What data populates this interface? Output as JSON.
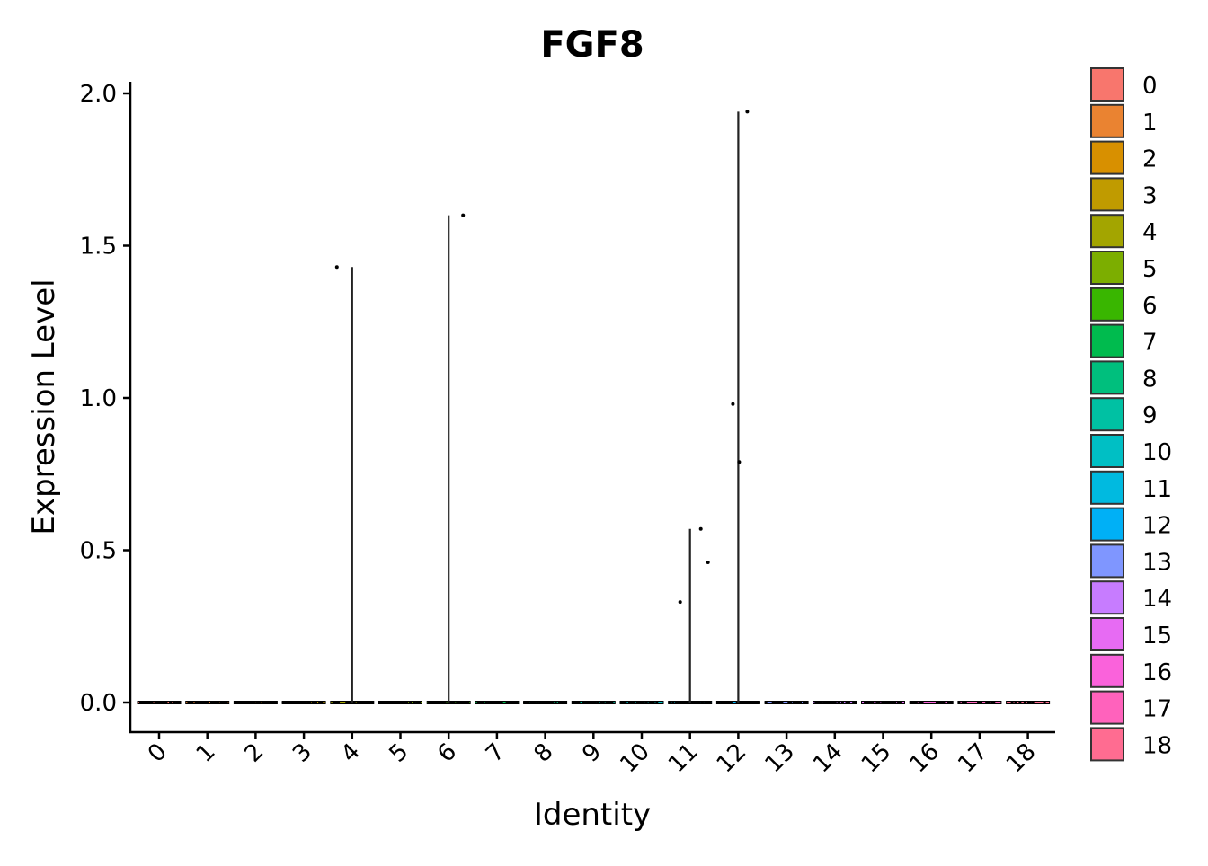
{
  "chart_data": {
    "type": "violin",
    "title": "FGF8",
    "xlabel": "Identity",
    "ylabel": "Expression Level",
    "ylim": [
      -0.1,
      2.03
    ],
    "yticks": [
      "0.0",
      "0.5",
      "1.0",
      "1.5",
      "2.0"
    ],
    "grid": false,
    "legend_position": "right",
    "categories": [
      "0",
      "1",
      "2",
      "3",
      "4",
      "5",
      "6",
      "7",
      "8",
      "9",
      "10",
      "11",
      "12",
      "13",
      "14",
      "15",
      "16",
      "17",
      "18"
    ],
    "colors": [
      "#F8766D",
      "#EA8331",
      "#D89000",
      "#C09B00",
      "#A3A500",
      "#7CAE00",
      "#39B600",
      "#00BB4E",
      "#00BF7D",
      "#00C1A3",
      "#00BFC4",
      "#00BAE0",
      "#00B0F6",
      "#7F96FF",
      "#C77CFF",
      "#E76BF3",
      "#FA62DB",
      "#FF62BC",
      "#FF6C91"
    ],
    "max_expression": [
      0,
      0,
      0,
      0,
      1.43,
      0,
      1.6,
      0,
      0,
      0,
      0,
      0.57,
      1.94,
      0,
      0,
      0,
      0,
      0,
      0
    ],
    "nonzero_points": [
      {
        "category": "4",
        "values": [
          1.43
        ]
      },
      {
        "category": "6",
        "values": [
          1.6
        ]
      },
      {
        "category": "11",
        "values": [
          0.57,
          0.46,
          0.33
        ]
      },
      {
        "category": "12",
        "values": [
          1.94,
          0.98,
          0.79
        ]
      }
    ],
    "zero_point_density": [
      40,
      40,
      40,
      40,
      40,
      40,
      40,
      36,
      34,
      34,
      36,
      34,
      40,
      30,
      30,
      24,
      18,
      14,
      8
    ]
  }
}
